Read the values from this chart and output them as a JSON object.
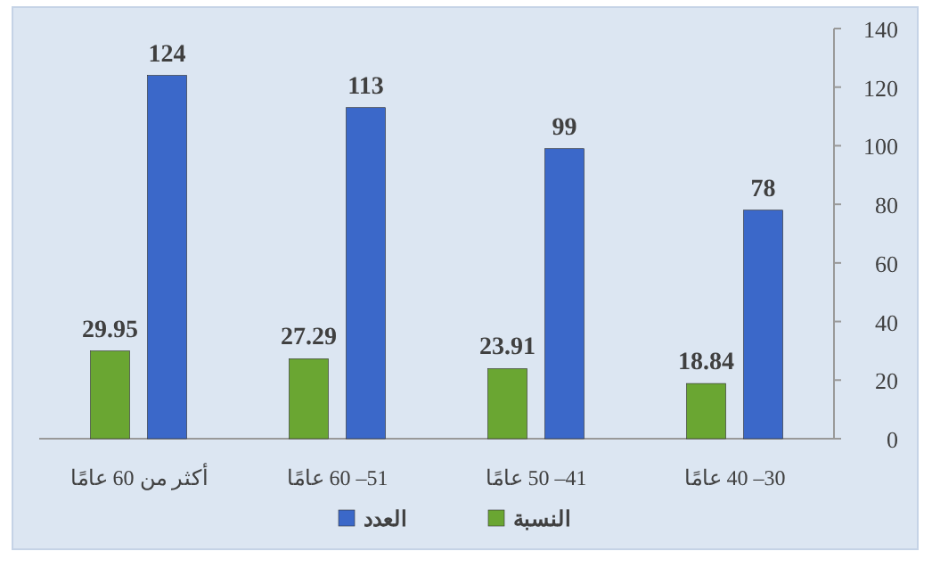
{
  "chart_data": {
    "type": "bar",
    "categories": [
      "أكثر من 60 عامًا",
      "51– 60 عامًا",
      "41– 50 عامًا",
      "30– 40 عامًا"
    ],
    "series": [
      {
        "name": "النسبة",
        "color": "#6aa632",
        "values": [
          29.95,
          27.29,
          23.91,
          18.84
        ]
      },
      {
        "name": "العدد",
        "color": "#3b68c9",
        "values": [
          124,
          113,
          99,
          78
        ]
      }
    ],
    "ylim": [
      0,
      140
    ],
    "yticks": [
      0,
      20,
      40,
      60,
      80,
      100,
      120,
      140
    ],
    "data_labels": true,
    "legend": "bottom",
    "grid": false
  }
}
